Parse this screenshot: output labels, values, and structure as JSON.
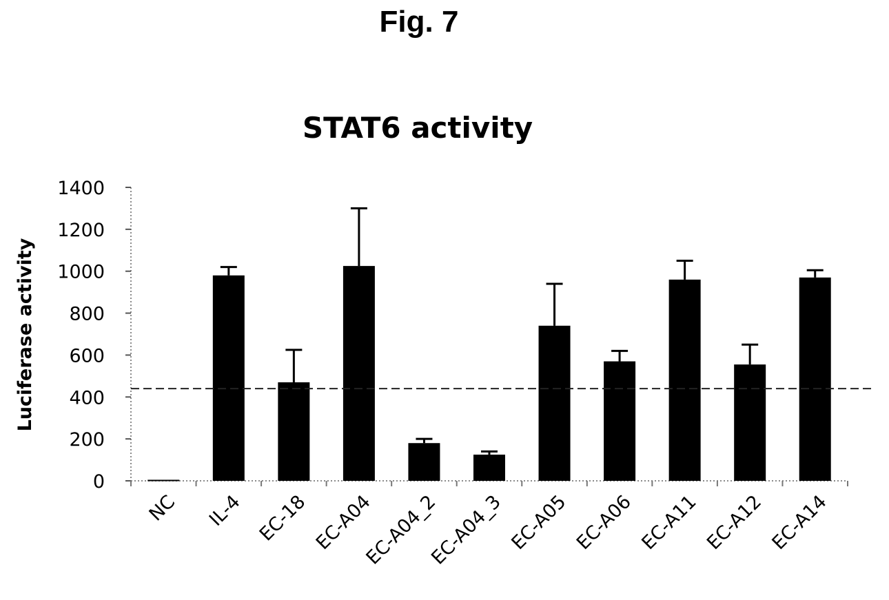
{
  "figure": {
    "label": "Fig. 7"
  },
  "chart_data": {
    "type": "bar",
    "title": "STAT6 activity",
    "xlabel": "",
    "ylabel": "Luciferase activity",
    "categories": [
      "NC",
      "IL-4",
      "EC-18",
      "EC-A04",
      "EC-A04_2",
      "EC-A04_3",
      "EC-A05",
      "EC-A06",
      "EC-A11",
      "EC-A12",
      "EC-A14"
    ],
    "values": [
      5,
      980,
      470,
      1025,
      180,
      125,
      740,
      570,
      960,
      555,
      970
    ],
    "errors": [
      0,
      40,
      155,
      275,
      20,
      15,
      200,
      50,
      90,
      95,
      35
    ],
    "ylim": [
      0,
      1400
    ],
    "yticks": [
      0,
      200,
      400,
      600,
      800,
      1000,
      1200,
      1400
    ],
    "reference_line": 440,
    "grid": false,
    "bar_color": "#000000"
  }
}
